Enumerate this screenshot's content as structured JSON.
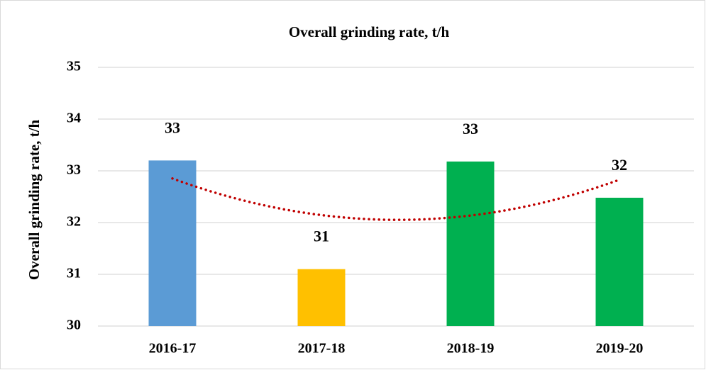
{
  "chart_data": {
    "type": "bar",
    "title": "Overall grinding rate, t/h",
    "y_label": "Overall grinding rate, t/h",
    "categories": [
      "2016-17",
      "2017-18",
      "2018-19",
      "2019-20"
    ],
    "values": [
      33.2,
      31.1,
      33.18,
      32.48
    ],
    "value_labels": [
      "33",
      "31",
      "33",
      "32"
    ],
    "colors": [
      "#5b9bd5",
      "#ffc000",
      "#00b050",
      "#00b050"
    ],
    "ylim": [
      30,
      35
    ],
    "yticks": [
      30,
      31,
      32,
      33,
      34,
      35
    ],
    "grid": true,
    "trendline": {
      "type": "polynomial",
      "order": 2,
      "color": "#c00000",
      "style": "dotted"
    }
  }
}
